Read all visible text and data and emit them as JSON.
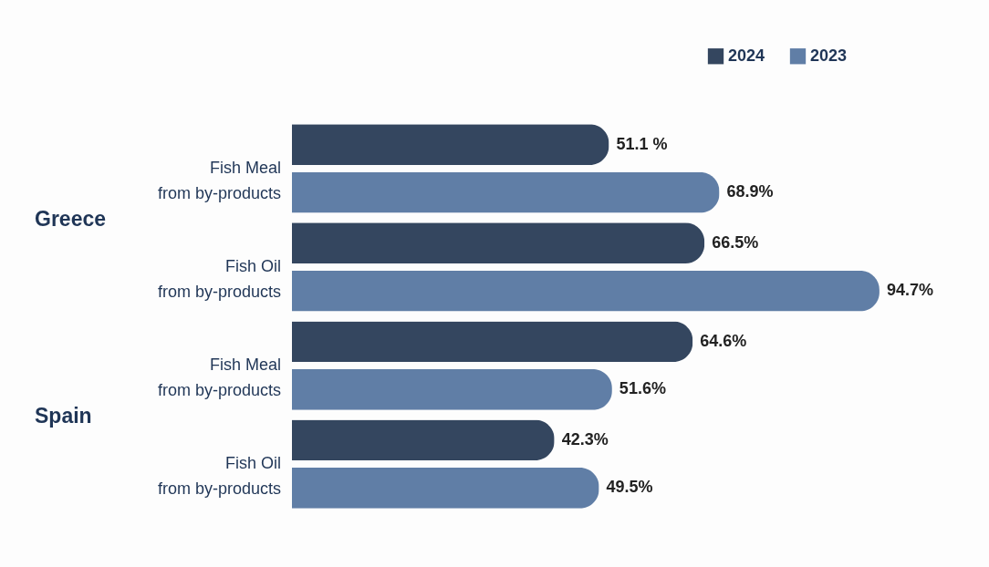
{
  "chart_data": {
    "type": "bar",
    "orientation": "horizontal",
    "categories": [
      "Fish Meal\nfrom by-products",
      "Fish Oil\nfrom by-products",
      "Fish Meal\nfrom by-products",
      "Fish Oil\nfrom by-products"
    ],
    "series": [
      {
        "name": "2024",
        "color": "#34465f",
        "values": [
          51.1,
          66.5,
          64.6,
          42.3
        ],
        "value_labels": [
          "51.1 %",
          "66.5%",
          "64.6%",
          "42.3%"
        ]
      },
      {
        "name": "2023",
        "color": "#607ea6",
        "values": [
          68.9,
          94.7,
          51.6,
          49.5
        ],
        "value_labels": [
          "68.9%",
          "94.7%",
          "51.6%",
          "49.5%"
        ]
      }
    ],
    "annotations": [
      "Greece",
      "Spain"
    ],
    "legend": "top right"
  }
}
